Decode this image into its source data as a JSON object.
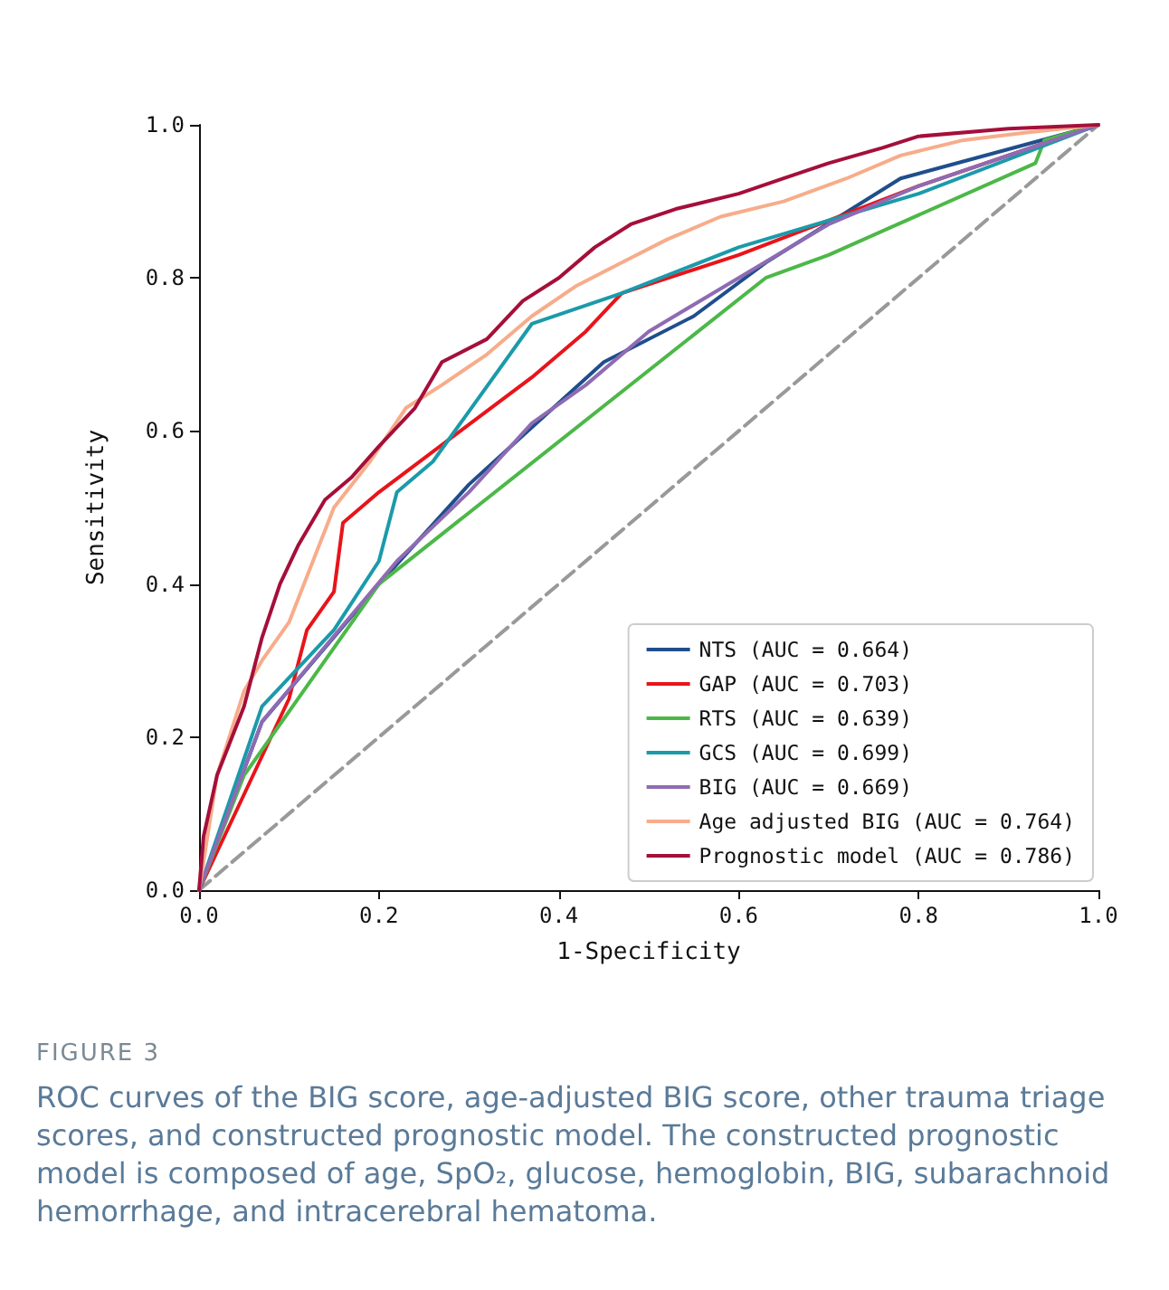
{
  "chart_data": {
    "type": "line",
    "xlabel": "1-Specificity",
    "ylabel": "Sensitivity",
    "xlim": [
      0,
      1
    ],
    "ylim": [
      0,
      1
    ],
    "xticks": [
      {
        "value": 0,
        "label": "0.0"
      },
      {
        "value": 0.2,
        "label": "0.2"
      },
      {
        "value": 0.4,
        "label": "0.4"
      },
      {
        "value": 0.6,
        "label": "0.6"
      },
      {
        "value": 0.8,
        "label": "0.8"
      },
      {
        "value": 1,
        "label": "1.0"
      }
    ],
    "yticks": [
      {
        "value": 0,
        "label": "0.0"
      },
      {
        "value": 0.2,
        "label": "0.2"
      },
      {
        "value": 0.4,
        "label": "0.4"
      },
      {
        "value": 0.6,
        "label": "0.6"
      },
      {
        "value": 0.8,
        "label": "0.8"
      },
      {
        "value": 1,
        "label": "1.0"
      }
    ],
    "grid": false,
    "legend": "bottom right",
    "marker": "none",
    "line_style": "solid",
    "series": [
      {
        "name": "NTS (AUC = 0.664)",
        "color": "#1f4e8c",
        "x": [
          0,
          0.07,
          0.2,
          0.3,
          0.45,
          0.55,
          0.63,
          0.78,
          1
        ],
        "values": [
          0,
          0.22,
          0.4,
          0.53,
          0.69,
          0.75,
          0.82,
          0.93,
          1
        ]
      },
      {
        "name": "GAP (AUC = 0.703)",
        "color": "#e8141a",
        "x": [
          0,
          0.1,
          0.12,
          0.15,
          0.16,
          0.2,
          0.37,
          0.43,
          0.47,
          0.6,
          0.8,
          1
        ],
        "values": [
          0,
          0.25,
          0.34,
          0.39,
          0.48,
          0.52,
          0.67,
          0.73,
          0.78,
          0.83,
          0.92,
          1
        ]
      },
      {
        "name": "RTS (AUC = 0.639)",
        "color": "#4cb848",
        "x": [
          0,
          0.05,
          0.2,
          0.63,
          0.7,
          0.93,
          0.94,
          1
        ],
        "values": [
          0,
          0.15,
          0.4,
          0.8,
          0.83,
          0.95,
          0.98,
          1
        ]
      },
      {
        "name": "GCS (AUC = 0.699)",
        "color": "#1b9aaa",
        "x": [
          0,
          0.07,
          0.15,
          0.2,
          0.22,
          0.26,
          0.37,
          0.47,
          0.6,
          0.8,
          1
        ],
        "values": [
          0,
          0.24,
          0.34,
          0.43,
          0.52,
          0.56,
          0.74,
          0.78,
          0.84,
          0.91,
          1
        ]
      },
      {
        "name": "BIG (AUC = 0.669)",
        "color": "#8e6bb3",
        "x": [
          0,
          0.07,
          0.22,
          0.3,
          0.37,
          0.43,
          0.5,
          0.6,
          0.7,
          0.8,
          1
        ],
        "values": [
          0,
          0.22,
          0.43,
          0.52,
          0.61,
          0.66,
          0.73,
          0.8,
          0.87,
          0.92,
          1
        ]
      },
      {
        "name": "Age adjusted BIG (AUC = 0.764)",
        "color": "#f7ac8a",
        "x": [
          0,
          0.02,
          0.05,
          0.07,
          0.1,
          0.13,
          0.15,
          0.19,
          0.23,
          0.27,
          0.32,
          0.37,
          0.42,
          0.47,
          0.52,
          0.58,
          0.65,
          0.72,
          0.78,
          0.85,
          0.92,
          1
        ],
        "values": [
          0,
          0.15,
          0.26,
          0.3,
          0.35,
          0.44,
          0.5,
          0.56,
          0.63,
          0.66,
          0.7,
          0.75,
          0.79,
          0.82,
          0.85,
          0.88,
          0.9,
          0.93,
          0.96,
          0.98,
          0.99,
          1
        ]
      },
      {
        "name": "Prognostic model (AUC = 0.786)",
        "color": "#a50f3a",
        "x": [
          0,
          0.005,
          0.02,
          0.05,
          0.07,
          0.09,
          0.11,
          0.14,
          0.17,
          0.2,
          0.24,
          0.27,
          0.32,
          0.36,
          0.4,
          0.44,
          0.48,
          0.53,
          0.6,
          0.65,
          0.7,
          0.76,
          0.8,
          0.9,
          1
        ],
        "values": [
          0,
          0.07,
          0.15,
          0.24,
          0.33,
          0.4,
          0.45,
          0.51,
          0.54,
          0.58,
          0.63,
          0.69,
          0.72,
          0.77,
          0.8,
          0.84,
          0.87,
          0.89,
          0.91,
          0.93,
          0.95,
          0.97,
          0.985,
          0.995,
          1
        ]
      },
      {
        "color": "#999999",
        "line_style": "dashed",
        "x": [
          0,
          1
        ],
        "values": [
          0,
          1
        ]
      }
    ],
    "annotations": [
      "FIGURE 3",
      "ROC curves of the BIG score, age-adjusted BIG score, other trauma triage scores, and constructed prognostic model. The constructed prognostic model is composed of age, SpO₂, glucose, hemoglobin, BIG, subarachnoid hemorrhage, and intracerebral hematoma."
    ]
  }
}
